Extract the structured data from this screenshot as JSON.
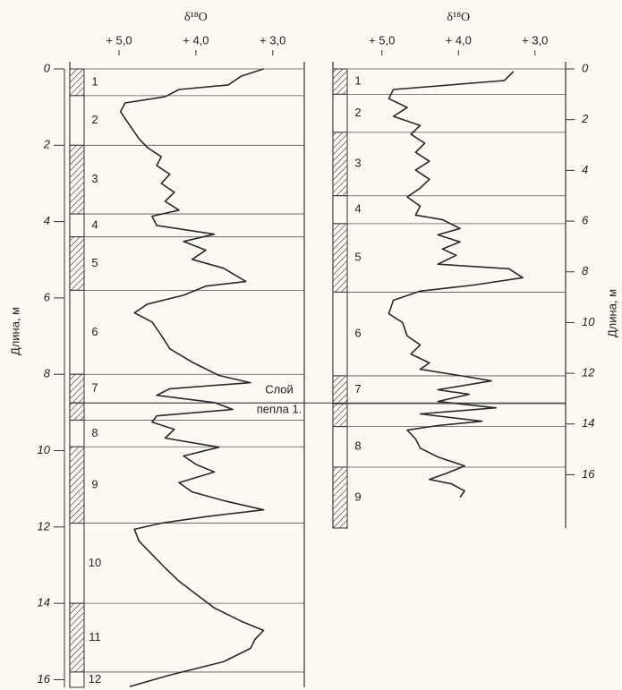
{
  "chart_data": [
    {
      "type": "line",
      "title": "δ¹⁸O",
      "ylabel": "Длина, м",
      "yaxis_side": "left",
      "color": "#2a2a2a",
      "xlim": [
        5.64,
        2.59
      ],
      "xticks": [
        {
          "value": 5,
          "label": "+ 5,0"
        },
        {
          "value": 4,
          "label": "+ 4,0"
        },
        {
          "value": 3,
          "label": "+ 3,0"
        }
      ],
      "ylim": [
        0,
        16.2
      ],
      "yticks": [
        0,
        2,
        4,
        6,
        8,
        10,
        12,
        14,
        16
      ],
      "annotation": [
        "Слой",
        "пепла 1."
      ],
      "units": [
        {
          "label": "1",
          "top": 0,
          "bottom": 0.7,
          "hatched": true
        },
        {
          "label": "2",
          "top": 0.7,
          "bottom": 2.0,
          "hatched": false
        },
        {
          "label": "3",
          "top": 2.0,
          "bottom": 3.8,
          "hatched": true
        },
        {
          "label": "4",
          "top": 3.8,
          "bottom": 4.4,
          "hatched": false
        },
        {
          "label": "5",
          "top": 4.4,
          "bottom": 5.8,
          "hatched": true
        },
        {
          "label": "6",
          "top": 5.8,
          "bottom": 8.0,
          "hatched": false
        },
        {
          "label": "7",
          "top": 8.0,
          "bottom": 8.75,
          "hatched": true
        },
        {
          "top": 8.75,
          "bottom": 9.2,
          "hatched": true
        },
        {
          "label": "8",
          "top": 9.2,
          "bottom": 9.9,
          "hatched": false
        },
        {
          "label": "9",
          "top": 9.9,
          "bottom": 11.9,
          "hatched": true
        },
        {
          "label": "10",
          "top": 11.9,
          "bottom": 14.0,
          "hatched": false
        },
        {
          "label": "11",
          "top": 14.0,
          "bottom": 15.8,
          "hatched": true
        },
        {
          "label": "12",
          "top": 15.8,
          "bottom": 16.2,
          "hatched": false
        }
      ],
      "depth": [
        0,
        0.19,
        0.42,
        0.54,
        0.73,
        0.89,
        1.12,
        1.48,
        1.83,
        2.06,
        2.3,
        2.53,
        2.76,
        3.0,
        3.23,
        3.47,
        3.7,
        3.86,
        4.1,
        4.33,
        4.52,
        4.75,
        4.99,
        5.22,
        5.57,
        5.69,
        5.93,
        6.16,
        6.39,
        6.63,
        6.98,
        7.33,
        7.68,
        8.03,
        8.22,
        8.38,
        8.55,
        8.74,
        8.92,
        9.09,
        9.25,
        9.44,
        9.67,
        9.91,
        10.14,
        10.37,
        10.56,
        10.84,
        11.08,
        11.31,
        11.55,
        11.73,
        11.9,
        12.06,
        12.37,
        12.72,
        13.07,
        13.42,
        13.77,
        14.12,
        14.47,
        14.71,
        14.94,
        15.18,
        15.53,
        15.88,
        16.18
      ],
      "values": [
        3.12,
        3.41,
        3.58,
        4.22,
        4.4,
        4.92,
        4.98,
        4.86,
        4.74,
        4.63,
        4.45,
        4.51,
        4.34,
        4.45,
        4.28,
        4.4,
        4.22,
        4.57,
        4.51,
        3.76,
        4.16,
        3.87,
        4.05,
        3.64,
        3.35,
        3.87,
        4.16,
        4.63,
        4.8,
        4.57,
        4.45,
        4.34,
        4.05,
        3.7,
        3.29,
        4.34,
        4.51,
        3.76,
        3.52,
        4.51,
        4.57,
        4.28,
        4.4,
        3.7,
        4.16,
        3.99,
        3.76,
        4.22,
        4.05,
        3.64,
        3.12,
        3.87,
        4.45,
        4.8,
        4.74,
        4.57,
        4.4,
        4.22,
        3.99,
        3.76,
        3.41,
        3.12,
        3.23,
        3.29,
        3.64,
        4.34,
        4.86
      ]
    },
    {
      "type": "line",
      "title": "δ¹⁸O",
      "ylabel": "Длина, м",
      "yaxis_side": "right",
      "color": "#2a2a2a",
      "xlim": [
        5.64,
        2.6
      ],
      "xticks": [
        {
          "value": 5,
          "label": "+ 5,0"
        },
        {
          "value": 4,
          "label": "+ 4,0"
        },
        {
          "value": 3,
          "label": "+ 3,0"
        }
      ],
      "ylim": [
        0,
        18.1
      ],
      "yticks": [
        0,
        2,
        4,
        6,
        8,
        10,
        12,
        14,
        16
      ],
      "units": [
        {
          "label": "1",
          "top": 0,
          "bottom": 1.0,
          "hatched": true
        },
        {
          "label": "2",
          "top": 1.0,
          "bottom": 2.5,
          "hatched": false
        },
        {
          "label": "3",
          "top": 2.5,
          "bottom": 5.0,
          "hatched": true
        },
        {
          "label": "4",
          "top": 5.0,
          "bottom": 6.1,
          "hatched": false
        },
        {
          "label": "5",
          "top": 6.1,
          "bottom": 8.8,
          "hatched": true
        },
        {
          "label": "6",
          "top": 8.8,
          "bottom": 12.1,
          "hatched": false
        },
        {
          "label": "7",
          "top": 12.1,
          "bottom": 13.2,
          "hatched": true
        },
        {
          "top": 13.2,
          "bottom": 14.1,
          "hatched": true
        },
        {
          "label": "8",
          "top": 14.1,
          "bottom": 15.7,
          "hatched": false
        },
        {
          "label": "9",
          "top": 15.7,
          "bottom": 18.1,
          "hatched": true
        }
      ],
      "depth": [
        0.1,
        0.46,
        0.81,
        1.17,
        1.52,
        1.87,
        2.23,
        2.58,
        2.93,
        3.29,
        3.64,
        3.99,
        4.35,
        4.7,
        5.05,
        5.41,
        5.76,
        5.94,
        6.29,
        6.54,
        6.82,
        7.1,
        7.35,
        7.7,
        7.88,
        8.23,
        8.52,
        8.76,
        9.12,
        9.65,
        10.0,
        10.53,
        10.88,
        11.24,
        11.59,
        11.84,
        12.12,
        12.3,
        12.65,
        12.83,
        13.11,
        13.36,
        13.6,
        13.89,
        14.06,
        14.24,
        14.59,
        14.95,
        15.3,
        15.65,
        15.94,
        16.18,
        16.36,
        16.64,
        16.89
      ],
      "values": [
        3.28,
        3.4,
        4.85,
        4.91,
        4.67,
        4.85,
        4.5,
        4.62,
        4.44,
        4.56,
        4.38,
        4.56,
        4.38,
        4.5,
        4.67,
        4.5,
        4.56,
        4.21,
        3.98,
        4.27,
        3.98,
        4.21,
        4.03,
        4.27,
        3.34,
        3.16,
        3.8,
        4.5,
        4.85,
        4.91,
        4.73,
        4.67,
        4.5,
        4.62,
        4.38,
        4.5,
        3.92,
        3.57,
        4.27,
        3.86,
        4.27,
        3.51,
        4.5,
        3.69,
        4.27,
        4.67,
        4.56,
        4.5,
        4.27,
        3.92,
        4.15,
        4.38,
        4.09,
        3.92,
        3.98
      ]
    }
  ]
}
